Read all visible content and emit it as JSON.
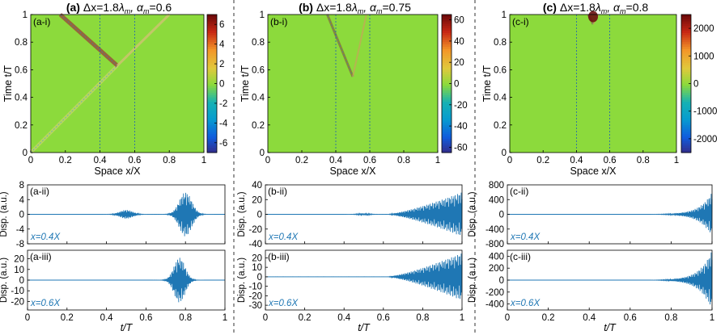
{
  "panels": [
    {
      "title": {
        "letter": "(a)",
        "text": " Δx=1.8",
        "lambda": "λ",
        "sub": "m",
        "alpha": ", α",
        "eq": "=0.6"
      },
      "heatmap": {
        "label": "(a-i)",
        "xlabel": "Space x/X",
        "ylabel": "Time t/T",
        "xticks": [
          "0",
          "0.2",
          "0.4",
          "0.6",
          "0.8",
          "1"
        ],
        "yticks": [
          "0",
          "0.2",
          "0.4",
          "0.6",
          "0.8",
          "1"
        ],
        "cticks": [
          "6",
          "4",
          "2",
          "0",
          "-2",
          "-4",
          "-6"
        ],
        "crange": [
          -7,
          7
        ]
      },
      "top": {
        "label": "(a-ii)",
        "probe": "x=0.4X",
        "yticks": [
          "8",
          "4",
          "0",
          "-4",
          "-8"
        ]
      },
      "bottom": {
        "label": "(a-iii)",
        "probe": "x=0.6X",
        "yticks": [
          "20",
          "10",
          "0",
          "-10",
          "-20"
        ]
      },
      "xlabel": "t/T",
      "xticks": [
        "0",
        "0.2",
        "0.4",
        "0.6",
        "0.8",
        "1"
      ],
      "ylabel": "Disp. (a.u.)"
    },
    {
      "title": {
        "letter": "(b)",
        "text": " Δx=1.8",
        "lambda": "λ",
        "sub": "m",
        "alpha": ", α",
        "eq": "=0.75"
      },
      "heatmap": {
        "label": "(b-i)",
        "xlabel": "Space x/X",
        "ylabel": "Time t/T",
        "xticks": [
          "0",
          "0.2",
          "0.4",
          "0.6",
          "0.8",
          "1"
        ],
        "yticks": [
          "0",
          "0.2",
          "0.4",
          "0.6",
          "0.8",
          "1"
        ],
        "cticks": [
          "60",
          "40",
          "20",
          "0",
          "-20",
          "-40",
          "-60"
        ],
        "crange": [
          -65,
          65
        ]
      },
      "top": {
        "label": "(b-ii)",
        "probe": "x=0.4X",
        "yticks": [
          "40",
          "20",
          "0",
          "-20",
          "-40"
        ]
      },
      "bottom": {
        "label": "(b-iii)",
        "probe": "x=0.6X",
        "yticks": [
          "20",
          "10",
          "0",
          "-10",
          "-20",
          "-30"
        ]
      },
      "xlabel": "t/T",
      "xticks": [
        "0",
        "0.2",
        "0.4",
        "0.6",
        "0.8",
        "1"
      ],
      "ylabel": "Disp. (a.u.)"
    },
    {
      "title": {
        "letter": "(c)",
        "text": " Δx=1.8",
        "lambda": "λ",
        "sub": "m",
        "alpha": ", α",
        "eq": "=0.8"
      },
      "heatmap": {
        "label": "(c-i)",
        "xlabel": "Space x/X",
        "ylabel": "Time t/T",
        "xticks": [
          "0",
          "0.2",
          "0.4",
          "0.6",
          "0.8",
          "1"
        ],
        "yticks": [
          "0",
          "0.2",
          "0.4",
          "0.6",
          "0.8",
          "1"
        ],
        "cticks": [
          "2000",
          "1000",
          "0",
          "-1000",
          "-2000"
        ],
        "crange": [
          -2500,
          2500
        ]
      },
      "top": {
        "label": "(c-ii)",
        "probe": "x=0.4X",
        "yticks": [
          "800",
          "400",
          "0",
          "-400",
          "-800"
        ]
      },
      "bottom": {
        "label": "(c-iii)",
        "probe": "x=0.6X",
        "yticks": [
          "400",
          "200",
          "0",
          "-200",
          "-400"
        ]
      },
      "xlabel": "t/T",
      "xticks": [
        "0",
        "0.2",
        "0.4",
        "0.6",
        "0.8",
        "1"
      ],
      "ylabel": "Disp. (a.u.)"
    }
  ],
  "chart_data": [
    {
      "type": "heatmap",
      "panel": "a-i",
      "x_range": [
        0,
        1
      ],
      "y_range": [
        0,
        1
      ],
      "color_range": [
        -7,
        7
      ],
      "features": {
        "probe_lines_x": [
          0.4,
          0.6
        ],
        "reflection_point": [
          0.5,
          0.63
        ],
        "v_arms_end": [
          [
            0.17,
            1
          ],
          [
            0.8,
            1
          ]
        ]
      }
    },
    {
      "type": "heatmap",
      "panel": "b-i",
      "x_range": [
        0,
        1
      ],
      "y_range": [
        0,
        1
      ],
      "color_range": [
        -65,
        65
      ],
      "features": {
        "probe_lines_x": [
          0.4,
          0.6
        ],
        "reflection_point": [
          0.5,
          0.55
        ],
        "v_arms_end": [
          [
            0.35,
            1
          ],
          [
            0.58,
            1
          ]
        ]
      }
    },
    {
      "type": "heatmap",
      "panel": "c-i",
      "x_range": [
        0,
        1
      ],
      "y_range": [
        0,
        1
      ],
      "color_range": [
        -2500,
        2500
      ],
      "features": {
        "probe_lines_x": [
          0.4,
          0.6
        ],
        "reflection_point": [
          0.5,
          0.93
        ],
        "v_arms_end": [
          [
            0.47,
            1
          ],
          [
            0.53,
            1
          ]
        ]
      }
    },
    {
      "type": "line",
      "panel": "a-ii",
      "xlim": [
        0,
        1
      ],
      "ylim": [
        -8,
        8
      ],
      "envelope": [
        {
          "center": 0.5,
          "width": 0.045,
          "amp": 1.2
        },
        {
          "center": 0.8,
          "width": 0.045,
          "amp": 6
        }
      ]
    },
    {
      "type": "line",
      "panel": "a-iii",
      "xlim": [
        0,
        1
      ],
      "ylim": [
        -28,
        28
      ],
      "envelope": [
        {
          "center": 0.77,
          "width": 0.04,
          "amp": 21
        }
      ]
    },
    {
      "type": "line",
      "panel": "b-ii",
      "xlim": [
        0,
        1
      ],
      "ylim": [
        -40,
        40
      ],
      "envelope": [
        {
          "center": 0.5,
          "width": 0.04,
          "amp": 1.2
        },
        {
          "kind": "growth",
          "start": 0.62,
          "end": 1,
          "amp": 30
        }
      ]
    },
    {
      "type": "line",
      "panel": "b-iii",
      "xlim": [
        0,
        1
      ],
      "ylim": [
        -35,
        28
      ],
      "envelope": [
        {
          "kind": "growth",
          "start": 0.62,
          "end": 1,
          "amp": 25
        }
      ]
    },
    {
      "type": "line",
      "panel": "c-ii",
      "xlim": [
        0,
        1
      ],
      "ylim": [
        -800,
        800
      ],
      "envelope": [
        {
          "kind": "exp-growth",
          "start": 0.7,
          "end": 1,
          "amp": 600
        }
      ]
    },
    {
      "type": "line",
      "panel": "c-iii",
      "xlim": [
        0,
        1
      ],
      "ylim": [
        -500,
        500
      ],
      "envelope": [
        {
          "kind": "exp-growth",
          "start": 0.7,
          "end": 1,
          "amp": 500
        }
      ]
    }
  ]
}
